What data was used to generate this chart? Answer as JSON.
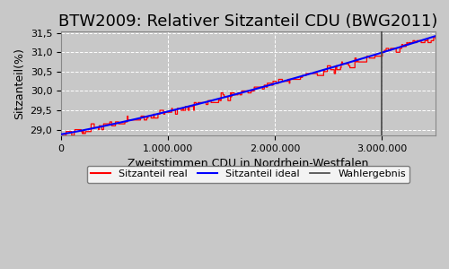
{
  "title": "BTW2009: Relativer Sitzanteil CDU (BWG2011)",
  "xlabel": "Zweitstimmen CDU in Nordrhein-Westfalen",
  "ylabel": "Sitzanteil(%)",
  "xlim": [
    0,
    3500000
  ],
  "ylim": [
    28.85,
    31.55
  ],
  "yticks": [
    29.0,
    29.5,
    30.0,
    30.5,
    31.0,
    31.5
  ],
  "ytick_labels": [
    "29,0",
    "29,5",
    "30,0",
    "30,5",
    "31,0",
    "31,5"
  ],
  "xticks": [
    0,
    1000000,
    2000000,
    3000000
  ],
  "xtick_labels": [
    "0",
    "1.000.000",
    "2.000.000",
    "3.000.000"
  ],
  "wahlergebnis_x": 3000000,
  "color_real": "#ff0000",
  "color_ideal": "#0000ff",
  "color_vline": "#444444",
  "bg_color": "#c8c8c8",
  "grid_color": "#ffffff",
  "legend_entries": [
    "Sitzanteil real",
    "Sitzanteil ideal",
    "Wahlergebnis"
  ],
  "title_fontsize": 13,
  "axis_fontsize": 9,
  "tick_fontsize": 8,
  "legend_fontsize": 8,
  "y_start": 28.88,
  "y_end": 31.42
}
